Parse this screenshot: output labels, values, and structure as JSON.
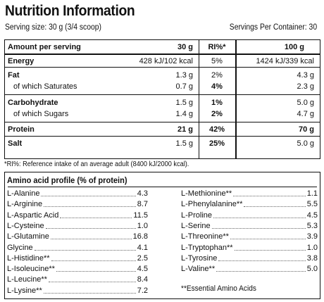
{
  "title": "Nutrition Information",
  "serving_size": "Serving size: 30 g (3/4 scoop)",
  "servings_per_container": "Servings Per Container:  30",
  "table": {
    "headers": [
      "Amount per serving",
      "30 g",
      "RI%*",
      "100 g"
    ],
    "rows": [
      {
        "name": "Energy",
        "bold": true,
        "v30": "428 kJ/102 kcal",
        "ri": "5%",
        "ri_bold": false,
        "v100": "1424 kJ/339 kcal"
      },
      {
        "name": "Fat",
        "bold": true,
        "v30": "1.3 g",
        "ri": "2%",
        "ri_bold": false,
        "v100": "4.3 g"
      },
      {
        "name": "of which Saturates",
        "bold": false,
        "v30": "0.7 g",
        "ri": "4%",
        "ri_bold": true,
        "v100": "2.3 g"
      },
      {
        "name": "Carbohydrate",
        "bold": true,
        "v30": "1.5 g",
        "ri": "1%",
        "ri_bold": true,
        "v100": "5.0 g"
      },
      {
        "name": "of which Sugars",
        "bold": false,
        "v30": "1.4 g",
        "ri": "2%",
        "ri_bold": true,
        "v100": "4.7 g"
      },
      {
        "name": "Protein",
        "bold": true,
        "v30": "21 g",
        "ri": "42%",
        "ri_bold": true,
        "v100": "70 g"
      },
      {
        "name": "Salt",
        "bold": true,
        "v30": "1.5 g",
        "ri": "25%",
        "ri_bold": true,
        "v100": "5.0 g"
      }
    ]
  },
  "ri_note": "*RI%: Reference intake of an average adult (8400 kJ/2000 kcal).",
  "amino": {
    "title": "Amino acid profile (% of protein)",
    "left": [
      {
        "name": "L-Alanine",
        "value": "4.3"
      },
      {
        "name": "L-Arginine",
        "value": "8.7"
      },
      {
        "name": "L-Aspartic Acid",
        "value": "11.5"
      },
      {
        "name": "L-Cysteine",
        "value": "1.0"
      },
      {
        "name": "L-Glutamine",
        "value": "16.8"
      },
      {
        "name": "Glycine",
        "value": "4.1"
      },
      {
        "name": "L-Histidine**",
        "value": "2.5"
      },
      {
        "name": "L-Isoleucine**",
        "value": "4.5"
      },
      {
        "name": "L-Leucine**",
        "value": "8.4"
      },
      {
        "name": "L-Lysine**",
        "value": "7.2"
      }
    ],
    "right": [
      {
        "name": "L-Methionine**",
        "value": "1.1"
      },
      {
        "name": "L-Phenylalanine**",
        "value": "5.5"
      },
      {
        "name": "L-Proline",
        "value": "4.5"
      },
      {
        "name": "L-Serine",
        "value": "5.3"
      },
      {
        "name": "L-Threonine**",
        "value": "3.9"
      },
      {
        "name": "L-Tryptophan**",
        "value": "1.0"
      },
      {
        "name": "L-Tyrosine",
        "value": "3.8"
      },
      {
        "name": "L-Valine**",
        "value": "5.0"
      }
    ],
    "essential_note": "**Essential Amino Acids"
  }
}
